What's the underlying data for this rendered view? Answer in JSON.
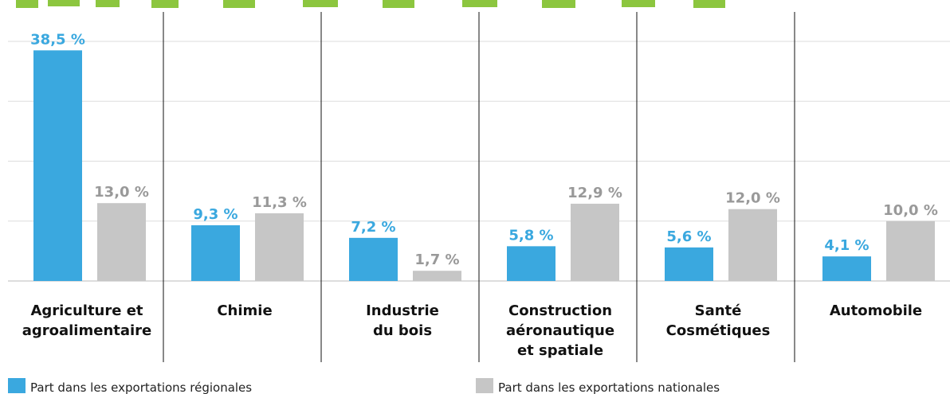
{
  "chart_data": {
    "type": "bar",
    "categories": [
      "Agriculture et\nagroalimentaire",
      "Chimie",
      "Industrie\ndu bois",
      "Construction\naéronautique\net spatiale",
      "Santé\nCosmétiques",
      "Automobile"
    ],
    "series": [
      {
        "name": "Part dans les exportations régionales",
        "color": "#3aa8df",
        "label_color": "#3aa8df",
        "values": [
          38.5,
          9.3,
          7.2,
          5.8,
          5.6,
          4.1
        ],
        "value_labels": [
          "38,5 %",
          "9,3 %",
          "7,2 %",
          "5,8 %",
          "5,6 %",
          "4,1 %"
        ]
      },
      {
        "name": "Part dans les exportations nationales",
        "color": "#c6c6c6",
        "label_color": "#999999",
        "values": [
          13.0,
          11.3,
          1.7,
          12.9,
          12.0,
          10.0
        ],
        "value_labels": [
          "13,0 %",
          "11,3 %",
          "1,7 %",
          "12,9 %",
          "12,0 %",
          "10,0 %"
        ]
      }
    ],
    "ylim": [
      0,
      40
    ],
    "yticks": [
      0,
      10,
      20,
      30,
      40
    ],
    "grid": true
  }
}
